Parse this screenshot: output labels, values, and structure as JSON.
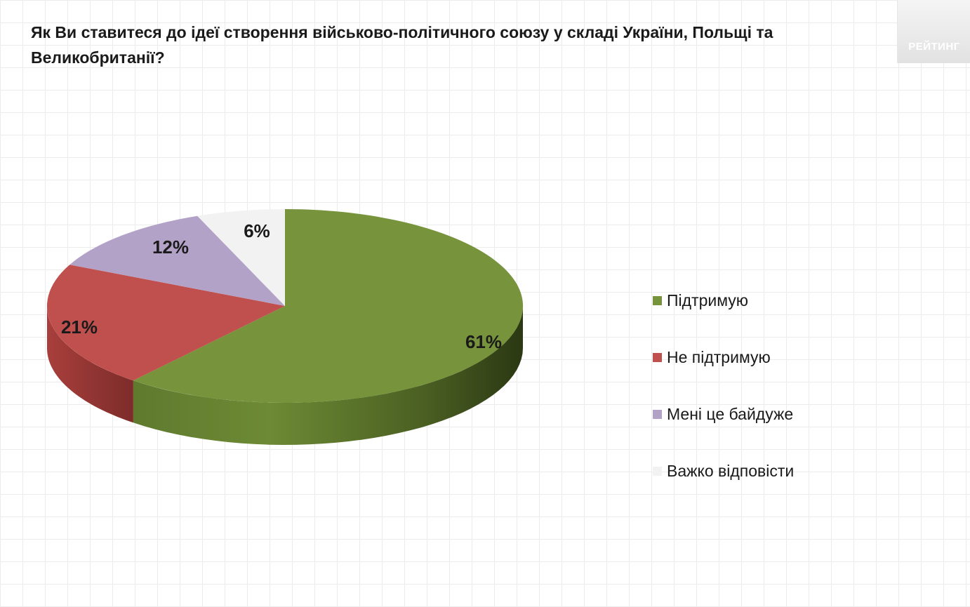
{
  "header": {
    "title": "Як Ви ставитеся до ідеї створення військово-політичного союзу у складі України, Польщі та Великобританії?",
    "logo_text": "РЕЙТИНГ"
  },
  "chart_data": {
    "type": "pie",
    "title": "Як Ви ставитеся до ідеї створення військово-політичного союзу у складі України, Польщі та Великобританії?",
    "categories": [
      "Підтримую",
      "Не підтримую",
      "Мені це байдуже",
      "Важко відповісти"
    ],
    "values": [
      61,
      21,
      12,
      6
    ],
    "labels": [
      "61%",
      "21%",
      "12%",
      "6%"
    ],
    "colors": [
      "#77933c",
      "#c0504d",
      "#b3a2c7",
      "#f2f2f2"
    ],
    "legend_position": "right",
    "style": "3d"
  }
}
